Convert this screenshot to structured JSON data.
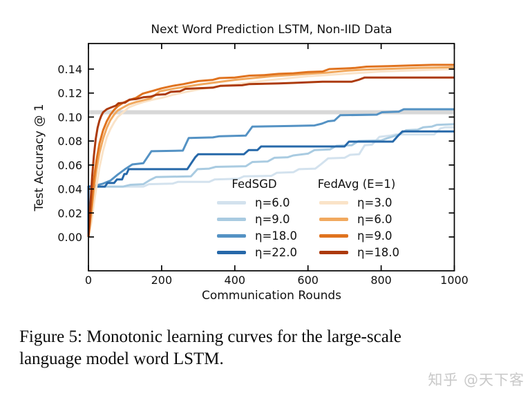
{
  "figure": {
    "caption_line1": "Figure 5:  Monotonic learning curves for the large-scale",
    "caption_line2": "language model word LSTM.",
    "watermark": "知乎 @天下客"
  },
  "chart_data": {
    "type": "line",
    "title": "Next Word Prediction LSTM, Non-IID Data",
    "xlabel": "Communication Rounds",
    "ylabel": "Test Accuracy @ 1",
    "xlim": [
      0,
      1000
    ],
    "ylim": [
      -0.028,
      0.161
    ],
    "x_ticks": [
      0,
      200,
      400,
      600,
      800,
      1000
    ],
    "y_ticks": [
      0.0,
      0.02,
      0.04,
      0.06,
      0.08,
      0.1,
      0.12,
      0.14
    ],
    "y_tick_labels": [
      "0.00",
      "0.02",
      "0.04",
      "0.06",
      "0.08",
      "0.10",
      "0.12",
      "0.14"
    ],
    "grid": false,
    "tick_direction": "in",
    "axis_color": "#000000",
    "reference_line": {
      "value": 0.104,
      "color": "#d8d8d8",
      "width": 6
    },
    "legend": {
      "position": "lower center",
      "groups": [
        {
          "header": "FedSGD",
          "series": [
            0,
            1,
            2,
            3
          ]
        },
        {
          "header": "FedAvg (E=1)",
          "series": [
            4,
            5,
            6,
            7
          ]
        }
      ]
    },
    "series": [
      {
        "name": "η=6.0",
        "group": "FedSGD",
        "color": "#d3e2ee",
        "points": [
          [
            0,
            0
          ],
          [
            0,
            0.042
          ],
          [
            150,
            0.042
          ],
          [
            165,
            0.044
          ],
          [
            230,
            0.0445
          ],
          [
            245,
            0.046
          ],
          [
            330,
            0.046
          ],
          [
            345,
            0.048
          ],
          [
            410,
            0.0485
          ],
          [
            425,
            0.0505
          ],
          [
            500,
            0.051
          ],
          [
            515,
            0.0535
          ],
          [
            560,
            0.054
          ],
          [
            575,
            0.0565
          ],
          [
            620,
            0.057
          ],
          [
            635,
            0.0605
          ],
          [
            655,
            0.0655
          ],
          [
            700,
            0.066
          ],
          [
            715,
            0.0685
          ],
          [
            740,
            0.069
          ],
          [
            755,
            0.0765
          ],
          [
            775,
            0.077
          ],
          [
            795,
            0.0835
          ],
          [
            825,
            0.0845
          ],
          [
            840,
            0.0855
          ],
          [
            945,
            0.0855
          ],
          [
            962,
            0.0905
          ],
          [
            975,
            0.0915
          ],
          [
            1000,
            0.0915
          ]
        ]
      },
      {
        "name": "η=9.0",
        "group": "FedSGD",
        "color": "#a9cbe1",
        "points": [
          [
            0,
            0
          ],
          [
            0,
            0.042
          ],
          [
            95,
            0.042
          ],
          [
            115,
            0.0435
          ],
          [
            150,
            0.044
          ],
          [
            168,
            0.0475
          ],
          [
            185,
            0.05
          ],
          [
            280,
            0.0505
          ],
          [
            298,
            0.0565
          ],
          [
            330,
            0.057
          ],
          [
            348,
            0.0585
          ],
          [
            430,
            0.059
          ],
          [
            448,
            0.0625
          ],
          [
            490,
            0.063
          ],
          [
            508,
            0.066
          ],
          [
            545,
            0.0665
          ],
          [
            560,
            0.068
          ],
          [
            600,
            0.0695
          ],
          [
            618,
            0.0725
          ],
          [
            660,
            0.073
          ],
          [
            678,
            0.076
          ],
          [
            720,
            0.0765
          ],
          [
            738,
            0.08
          ],
          [
            800,
            0.0805
          ],
          [
            818,
            0.0825
          ],
          [
            850,
            0.0855
          ],
          [
            868,
            0.089
          ],
          [
            900,
            0.0895
          ],
          [
            915,
            0.0915
          ],
          [
            938,
            0.092
          ],
          [
            952,
            0.0935
          ],
          [
            1000,
            0.094
          ]
        ]
      },
      {
        "name": "η=18.0",
        "group": "FedSGD",
        "color": "#5492c4",
        "points": [
          [
            0,
            0
          ],
          [
            0,
            0.042
          ],
          [
            20,
            0.043
          ],
          [
            40,
            0.0445
          ],
          [
            60,
            0.047
          ],
          [
            80,
            0.052
          ],
          [
            100,
            0.0565
          ],
          [
            120,
            0.0605
          ],
          [
            150,
            0.0615
          ],
          [
            172,
            0.0715
          ],
          [
            258,
            0.072
          ],
          [
            274,
            0.0825
          ],
          [
            340,
            0.083
          ],
          [
            358,
            0.084
          ],
          [
            430,
            0.0845
          ],
          [
            448,
            0.092
          ],
          [
            550,
            0.0925
          ],
          [
            618,
            0.093
          ],
          [
            638,
            0.0945
          ],
          [
            655,
            0.0965
          ],
          [
            672,
            0.097
          ],
          [
            688,
            0.1015
          ],
          [
            788,
            0.102
          ],
          [
            802,
            0.104
          ],
          [
            848,
            0.1045
          ],
          [
            862,
            0.1065
          ],
          [
            1000,
            0.1065
          ]
        ]
      },
      {
        "name": "η=22.0",
        "group": "FedSGD",
        "color": "#2668a9",
        "points": [
          [
            0,
            0
          ],
          [
            0,
            0.042
          ],
          [
            45,
            0.042
          ],
          [
            52,
            0.045
          ],
          [
            70,
            0.045
          ],
          [
            78,
            0.048
          ],
          [
            92,
            0.048
          ],
          [
            98,
            0.0525
          ],
          [
            104,
            0.0525
          ],
          [
            110,
            0.0565
          ],
          [
            270,
            0.0565
          ],
          [
            282,
            0.062
          ],
          [
            292,
            0.0665
          ],
          [
            300,
            0.069
          ],
          [
            425,
            0.069
          ],
          [
            438,
            0.0725
          ],
          [
            462,
            0.0725
          ],
          [
            472,
            0.0755
          ],
          [
            700,
            0.0755
          ],
          [
            712,
            0.0795
          ],
          [
            832,
            0.0795
          ],
          [
            845,
            0.084
          ],
          [
            858,
            0.088
          ],
          [
            1000,
            0.088
          ]
        ]
      },
      {
        "name": "η=3.0",
        "group": "FedAvg (E=1)",
        "color": "#fae3c8",
        "points": [
          [
            0,
            0
          ],
          [
            8,
            0.012
          ],
          [
            15,
            0.028
          ],
          [
            22,
            0.042
          ],
          [
            30,
            0.058
          ],
          [
            40,
            0.072
          ],
          [
            50,
            0.083
          ],
          [
            60,
            0.09
          ],
          [
            70,
            0.0955
          ],
          [
            80,
            0.1
          ],
          [
            95,
            0.104
          ],
          [
            110,
            0.108
          ],
          [
            130,
            0.1105
          ],
          [
            150,
            0.1125
          ],
          [
            175,
            0.1145
          ],
          [
            200,
            0.116
          ],
          [
            230,
            0.1185
          ],
          [
            260,
            0.1205
          ],
          [
            300,
            0.123
          ],
          [
            340,
            0.125
          ],
          [
            380,
            0.1265
          ],
          [
            420,
            0.128
          ],
          [
            460,
            0.1295
          ],
          [
            500,
            0.131
          ],
          [
            550,
            0.1325
          ],
          [
            600,
            0.134
          ],
          [
            650,
            0.135
          ],
          [
            700,
            0.136
          ],
          [
            750,
            0.137
          ],
          [
            800,
            0.138
          ],
          [
            850,
            0.1385
          ],
          [
            900,
            0.139
          ],
          [
            950,
            0.1395
          ],
          [
            1000,
            0.14
          ]
        ]
      },
      {
        "name": "η=6.0",
        "group": "FedAvg (E=1)",
        "color": "#f1a95f",
        "points": [
          [
            0,
            0
          ],
          [
            8,
            0.02
          ],
          [
            15,
            0.04
          ],
          [
            22,
            0.056
          ],
          [
            30,
            0.07
          ],
          [
            40,
            0.082
          ],
          [
            50,
            0.091
          ],
          [
            60,
            0.0975
          ],
          [
            70,
            0.102
          ],
          [
            80,
            0.1055
          ],
          [
            95,
            0.108
          ],
          [
            110,
            0.1105
          ],
          [
            130,
            0.1125
          ],
          [
            150,
            0.114
          ],
          [
            170,
            0.1155
          ],
          [
            195,
            0.1215
          ],
          [
            230,
            0.1235
          ],
          [
            260,
            0.125
          ],
          [
            300,
            0.127
          ],
          [
            350,
            0.129
          ],
          [
            400,
            0.131
          ],
          [
            450,
            0.1325
          ],
          [
            500,
            0.134
          ],
          [
            550,
            0.135
          ],
          [
            600,
            0.136
          ],
          [
            650,
            0.137
          ],
          [
            700,
            0.1385
          ],
          [
            750,
            0.1395
          ],
          [
            800,
            0.14
          ],
          [
            850,
            0.1405
          ],
          [
            900,
            0.141
          ],
          [
            1000,
            0.1415
          ]
        ]
      },
      {
        "name": "η=9.0",
        "group": "FedAvg (E=1)",
        "color": "#e0731f",
        "points": [
          [
            0,
            0
          ],
          [
            8,
            0.025
          ],
          [
            15,
            0.048
          ],
          [
            22,
            0.064
          ],
          [
            30,
            0.078
          ],
          [
            40,
            0.089
          ],
          [
            50,
            0.0965
          ],
          [
            60,
            0.102
          ],
          [
            70,
            0.106
          ],
          [
            80,
            0.109
          ],
          [
            95,
            0.112
          ],
          [
            110,
            0.114
          ],
          [
            130,
            0.116
          ],
          [
            148,
            0.1195
          ],
          [
            178,
            0.122
          ],
          [
            200,
            0.124
          ],
          [
            230,
            0.126
          ],
          [
            260,
            0.1275
          ],
          [
            300,
            0.13
          ],
          [
            340,
            0.131
          ],
          [
            358,
            0.1325
          ],
          [
            400,
            0.133
          ],
          [
            440,
            0.1345
          ],
          [
            480,
            0.135
          ],
          [
            520,
            0.136
          ],
          [
            560,
            0.1365
          ],
          [
            600,
            0.1375
          ],
          [
            640,
            0.138
          ],
          [
            658,
            0.14
          ],
          [
            700,
            0.1405
          ],
          [
            730,
            0.141
          ],
          [
            760,
            0.142
          ],
          [
            820,
            0.1425
          ],
          [
            880,
            0.143
          ],
          [
            940,
            0.1435
          ],
          [
            1000,
            0.1435
          ]
        ]
      },
      {
        "name": "η=18.0",
        "group": "FedAvg (E=1)",
        "color": "#ac3a0c",
        "points": [
          [
            0,
            0
          ],
          [
            5,
            0.025
          ],
          [
            10,
            0.05
          ],
          [
            15,
            0.068
          ],
          [
            20,
            0.082
          ],
          [
            25,
            0.091
          ],
          [
            30,
            0.097
          ],
          [
            35,
            0.101
          ],
          [
            40,
            0.104
          ],
          [
            50,
            0.1065
          ],
          [
            62,
            0.108
          ],
          [
            75,
            0.1095
          ],
          [
            82,
            0.1115
          ],
          [
            100,
            0.112
          ],
          [
            112,
            0.1145
          ],
          [
            130,
            0.115
          ],
          [
            150,
            0.1165
          ],
          [
            170,
            0.117
          ],
          [
            185,
            0.1185
          ],
          [
            210,
            0.119
          ],
          [
            225,
            0.121
          ],
          [
            250,
            0.1215
          ],
          [
            265,
            0.1235
          ],
          [
            300,
            0.124
          ],
          [
            340,
            0.1245
          ],
          [
            360,
            0.126
          ],
          [
            420,
            0.1265
          ],
          [
            440,
            0.1275
          ],
          [
            520,
            0.128
          ],
          [
            560,
            0.1285
          ],
          [
            600,
            0.129
          ],
          [
            640,
            0.1295
          ],
          [
            720,
            0.1295
          ],
          [
            738,
            0.131
          ],
          [
            755,
            0.133
          ],
          [
            1000,
            0.133
          ]
        ]
      }
    ]
  }
}
